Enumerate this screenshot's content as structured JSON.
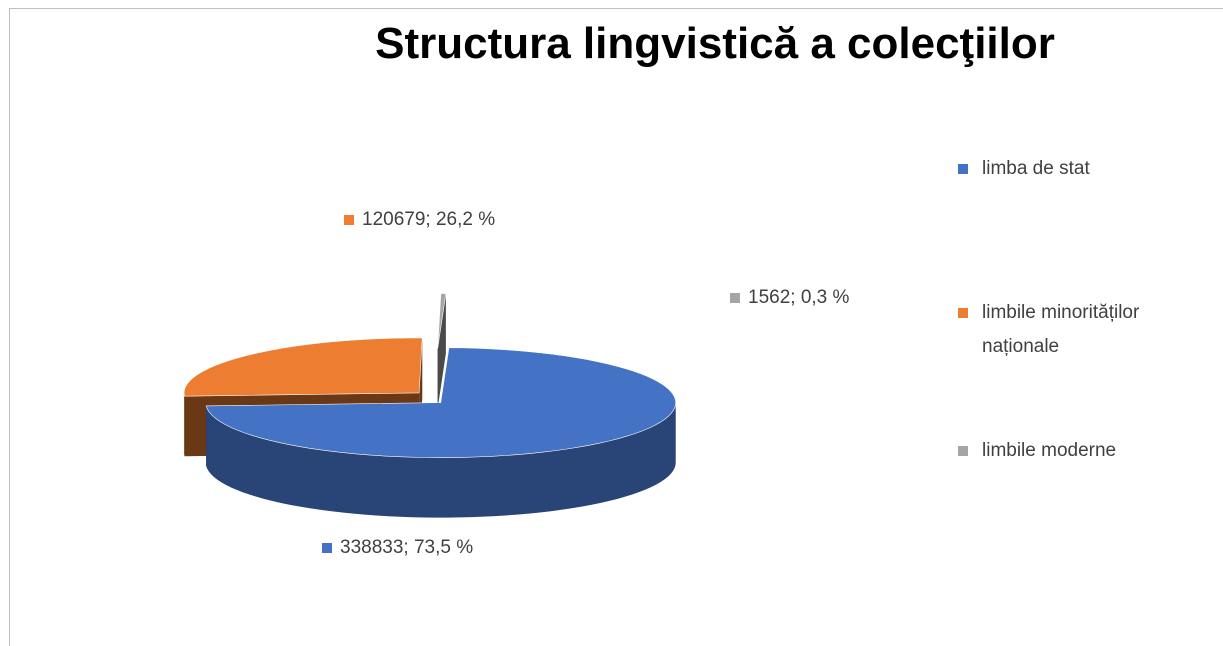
{
  "chart_data": {
    "type": "pie",
    "title": "Structura lingvistică a colecţiilor",
    "categories": [
      "limba de stat",
      "limbile minorităților naționale",
      "limbile moderne"
    ],
    "values": [
      338833,
      120679,
      1562
    ],
    "value_labels": [
      "338833; 73,5 %",
      "120679; 26,2 %",
      "1562; 0,3 %"
    ],
    "colors": [
      "#4472c4",
      "#ed7d31",
      "#a5a5a5"
    ],
    "legend": "right"
  }
}
